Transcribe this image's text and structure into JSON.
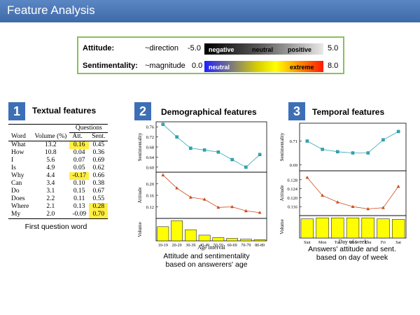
{
  "header": {
    "title": "Feature Analysis"
  },
  "legend": {
    "attitude": {
      "label": "Attitude:",
      "desc": "~direction",
      "min": "-5.0",
      "max": "5.0",
      "scale": [
        "negative",
        "neutral",
        "positive"
      ]
    },
    "sentimentality": {
      "label": "Sentimentality:",
      "desc": "~magnitude",
      "min": "0.0",
      "max": "8.0",
      "scale": [
        "neutral",
        "extreme"
      ]
    },
    "colors": {
      "negative": "#000000",
      "positive": "#e8e8e8",
      "neutral_s": "#2020ff",
      "extreme": "#ff1a00"
    }
  },
  "textual": {
    "number": "1",
    "title": "Textual features",
    "caption": "First question word",
    "group_header": "Questions",
    "columns": [
      "Word",
      "Volume (%)",
      "Att.",
      "Sent."
    ],
    "rows": [
      [
        "What",
        "13.2",
        "0.16",
        "0.45"
      ],
      [
        "How",
        "10.8",
        "0.04",
        "0.36"
      ],
      [
        "I",
        "5.6",
        "0.07",
        "0.69"
      ],
      [
        "Is",
        "4.9",
        "0.05",
        "0.62"
      ],
      [
        "Why",
        "4.4",
        "-0.17",
        "0.66"
      ],
      [
        "Can",
        "3.4",
        "0.10",
        "0.38"
      ],
      [
        "Do",
        "3.1",
        "0.15",
        "0.67"
      ],
      [
        "Does",
        "2.2",
        "0.11",
        "0.55"
      ],
      [
        "Where",
        "2.1",
        "0.13",
        "0.28"
      ],
      [
        "My",
        "2.0",
        "-0.09",
        "0.70"
      ]
    ],
    "highlight_color": "#ffee44"
  },
  "demographical": {
    "number": "2",
    "title": "Demographical features",
    "caption_line1": "Attitude and sentimentality",
    "caption_line2": "based on answerers' age"
  },
  "temporal": {
    "number": "3",
    "title": "Temporal features",
    "caption_line1": "Answers' attitude and sent.",
    "caption_line2": "based on day of week"
  },
  "chart_data": [
    {
      "type": "line",
      "title": "",
      "xlabel": "Age interval",
      "categories": [
        "10-19",
        "20-29",
        "30-39",
        "40-49",
        "50-59",
        "60-69",
        "70-79",
        "80-89"
      ],
      "panels": [
        {
          "ylabel": "Sentimentality",
          "ylim": [
            0.58,
            0.78
          ],
          "yticks": [
            "0.60",
            "0.64",
            "0.68",
            "0.72",
            "0.76"
          ],
          "values": [
            0.77,
            0.72,
            0.675,
            0.668,
            0.66,
            0.63,
            0.6,
            0.65
          ],
          "color": "#2aa9b5",
          "marker": "square"
        },
        {
          "ylabel": "Attitude",
          "ylim": [
            0.08,
            0.24
          ],
          "yticks": [
            "0.12",
            "0.16",
            "0.20"
          ],
          "values": [
            0.23,
            0.185,
            0.153,
            0.146,
            0.118,
            0.12,
            0.106,
            0.1
          ],
          "color": "#cc4a1a",
          "marker": "triangle"
        },
        {
          "ylabel": "Volume",
          "type": "bar",
          "ylim": [
            0,
            1
          ],
          "values": [
            0.7,
            1.0,
            0.55,
            0.28,
            0.16,
            0.12,
            0.08,
            0.06
          ],
          "color": "#ffff00"
        }
      ]
    },
    {
      "type": "line",
      "title": "",
      "xlabel": "Day of week",
      "categories": [
        "Sun",
        "Mon",
        "Tue",
        "Wed",
        "Thu",
        "Fri",
        "Sat"
      ],
      "panels": [
        {
          "ylabel": "Sentimentality",
          "ylim": [
            0.685,
            0.725
          ],
          "yticks": [
            "0.69",
            "0.71"
          ],
          "values": [
            0.71,
            0.703,
            0.701,
            0.7,
            0.7,
            0.711,
            0.718
          ],
          "color": "#2aa9b5",
          "marker": "square"
        },
        {
          "ylabel": "Attitude",
          "ylim": [
            0.112,
            0.132
          ],
          "yticks": [
            "0.116",
            "0.120",
            "0.124",
            "0.128"
          ],
          "values": [
            0.129,
            0.121,
            0.118,
            0.116,
            0.115,
            0.1155,
            0.125
          ],
          "color": "#cc4a1a",
          "marker": "triangle"
        },
        {
          "ylabel": "Volume",
          "type": "bar",
          "ylim": [
            0,
            1
          ],
          "values": [
            0.95,
            1.0,
            1.0,
            1.0,
            1.0,
            0.95,
            0.92
          ],
          "color": "#ffff00"
        }
      ]
    }
  ]
}
